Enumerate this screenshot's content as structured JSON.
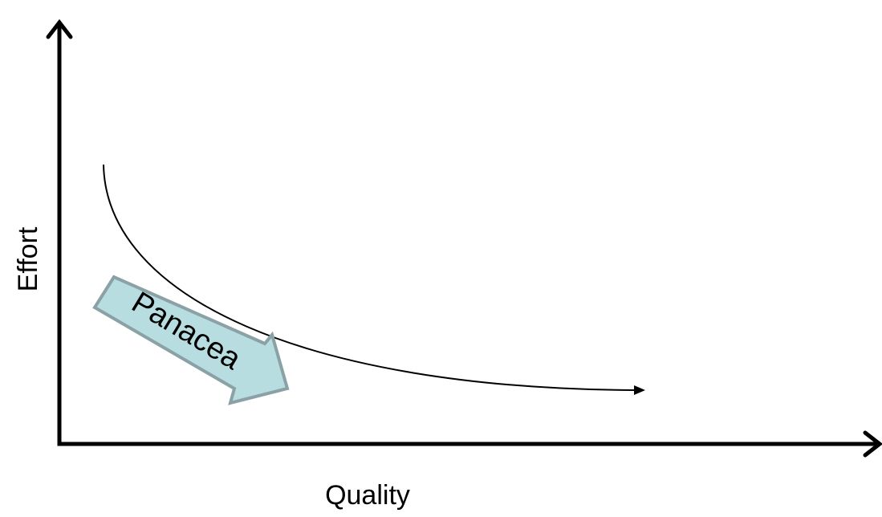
{
  "diagram": {
    "x_axis_label": "Quality",
    "y_axis_label": "Effort",
    "arrow_label": "Panacea",
    "colors": {
      "axis": "#000000",
      "curve": "#000000",
      "arrow_fill": "#b7dde1",
      "arrow_stroke": "#8aa1a6"
    }
  }
}
